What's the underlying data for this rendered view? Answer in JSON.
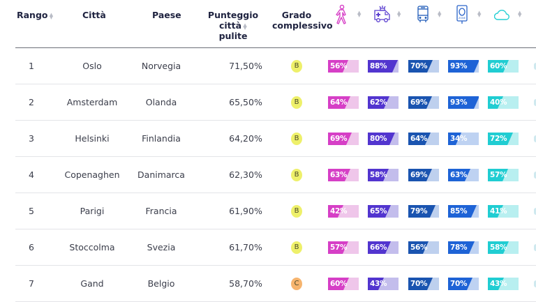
{
  "table": {
    "headers": {
      "rank": "Rango",
      "city": "Città",
      "country": "Paese",
      "score": "Punteggio città pulite",
      "score_line1": "Punteggio città",
      "score_line2": "pulite",
      "grade_line1": "Grado",
      "grade_line2": "complessivo",
      "icon_columns": [
        {
          "icon": "pedestrian-icon",
          "color": "#d63fc6"
        },
        {
          "icon": "ambulance-icon",
          "color": "#5b3fd0"
        },
        {
          "icon": "bus-icon",
          "color": "#1f5bb8"
        },
        {
          "icon": "zone-sign-icon",
          "color": "#2a63c9"
        },
        {
          "icon": "cloud-icon",
          "color": "#24cfd4"
        }
      ]
    },
    "rows": [
      {
        "rank": "1",
        "city": "Oslo",
        "country": "Norvegia",
        "score": "71,50%",
        "grade": "B",
        "metrics": [
          "56%",
          "88%",
          "70%",
          "93%",
          "60%"
        ],
        "values": [
          56,
          88,
          70,
          93,
          60
        ]
      },
      {
        "rank": "2",
        "city": "Amsterdam",
        "country": "Olanda",
        "score": "65,50%",
        "grade": "B",
        "metrics": [
          "64%",
          "62%",
          "69%",
          "93%",
          "40%"
        ],
        "values": [
          64,
          62,
          69,
          93,
          40
        ]
      },
      {
        "rank": "3",
        "city": "Helsinki",
        "country": "Finlandia",
        "score": "64,20%",
        "grade": "B",
        "metrics": [
          "69%",
          "80%",
          "64%",
          "34%",
          "72%"
        ],
        "values": [
          69,
          80,
          64,
          34,
          72
        ]
      },
      {
        "rank": "4",
        "city": "Copenaghen",
        "country": "Danimarca",
        "score": "62,30%",
        "grade": "B",
        "metrics": [
          "63%",
          "58%",
          "69%",
          "63%",
          "57%"
        ],
        "values": [
          63,
          58,
          69,
          63,
          57
        ]
      },
      {
        "rank": "5",
        "city": "Parigi",
        "country": "Francia",
        "score": "61,90%",
        "grade": "B",
        "metrics": [
          "42%",
          "65%",
          "79%",
          "85%",
          "41%"
        ],
        "values": [
          42,
          65,
          79,
          85,
          41
        ]
      },
      {
        "rank": "6",
        "city": "Stoccolma",
        "country": "Svezia",
        "score": "61,70%",
        "grade": "B",
        "metrics": [
          "57%",
          "66%",
          "56%",
          "78%",
          "58%"
        ],
        "values": [
          57,
          66,
          56,
          78,
          58
        ]
      },
      {
        "rank": "7",
        "city": "Gand",
        "country": "Belgio",
        "score": "58,70%",
        "grade": "C",
        "metrics": [
          "60%",
          "43%",
          "70%",
          "70%",
          "43%"
        ],
        "values": [
          60,
          43,
          70,
          70,
          43
        ]
      }
    ]
  },
  "colors": {
    "grade_B": "#eef06a",
    "grade_C": "#f6b46e",
    "bars": [
      {
        "fill": "#d63fc6",
        "bg": "#efc6ea"
      },
      {
        "fill": "#5235cf",
        "bg": "#c3bdec"
      },
      {
        "fill": "#1a54b0",
        "bg": "#bed0ee"
      },
      {
        "fill": "#1e63d6",
        "bg": "#bed2f2"
      },
      {
        "fill": "#20cdd2",
        "bg": "#b8eff0"
      }
    ]
  }
}
